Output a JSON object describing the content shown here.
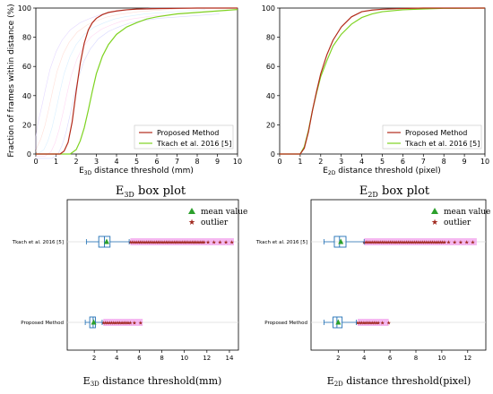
{
  "chart_data": [
    {
      "type": "line",
      "id": "cdf3d",
      "ylabel": "Fraction of frames within distance (%)",
      "xlabel_main": "E",
      "xlabel_sub": "3D",
      "xlabel_rest": " distance threshold (mm)",
      "xlim": [
        0,
        10
      ],
      "ylim": [
        0,
        100
      ],
      "xticks": [
        "0",
        "1",
        "2",
        "3",
        "4",
        "5",
        "6",
        "7",
        "8",
        "9",
        "10"
      ],
      "yticks": [
        "0",
        "20",
        "40",
        "60",
        "80",
        "100"
      ],
      "legend_position": "lower-right",
      "series": [
        {
          "name": "Proposed Method",
          "color": "#b22a1a",
          "x": [
            0,
            1.2,
            1.4,
            1.6,
            1.8,
            2.0,
            2.2,
            2.4,
            2.6,
            2.8,
            3.0,
            3.3,
            3.6,
            4.0,
            4.5,
            5.0,
            6.0,
            7.0,
            8.0,
            10.0
          ],
          "y": [
            0,
            0,
            2,
            8,
            22,
            43,
            62,
            76,
            85,
            90,
            93,
            95.5,
            97,
            98,
            98.8,
            99.3,
            99.6,
            99.8,
            100,
            100
          ]
        },
        {
          "name": "Tkach et al. 2016 [5]",
          "color": "#7ed321",
          "x": [
            0,
            1.7,
            2.0,
            2.2,
            2.4,
            2.6,
            2.8,
            3.0,
            3.3,
            3.6,
            4.0,
            4.5,
            5.0,
            5.5,
            6.0,
            7.0,
            8.0,
            9.0,
            10.0
          ],
          "y": [
            0,
            0,
            3,
            9,
            18,
            30,
            43,
            55,
            67,
            75,
            82,
            87,
            90,
            92.5,
            94,
            96,
            97,
            98,
            99
          ]
        }
      ]
    },
    {
      "type": "line",
      "id": "cdf2d",
      "xlabel_main": "E",
      "xlabel_sub": "2D",
      "xlabel_rest": " distance threshold (pixel)",
      "xlim": [
        0,
        10
      ],
      "ylim": [
        0,
        100
      ],
      "xticks": [
        "0",
        "1",
        "2",
        "3",
        "4",
        "5",
        "6",
        "7",
        "8",
        "9",
        "10"
      ],
      "yticks": [
        "0",
        "20",
        "40",
        "60",
        "80",
        "100"
      ],
      "legend_position": "lower-right",
      "series": [
        {
          "name": "Proposed Method",
          "color": "#b22a1a",
          "x": [
            0,
            1.0,
            1.2,
            1.4,
            1.6,
            1.8,
            2.0,
            2.3,
            2.6,
            3.0,
            3.5,
            4.0,
            4.5,
            5.0,
            6.0,
            7.0,
            8.0,
            10.0
          ],
          "y": [
            0,
            0,
            4,
            15,
            30,
            43,
            55,
            68,
            78,
            87,
            94,
            97.5,
            98.6,
            99.2,
            99.7,
            100,
            100,
            100
          ]
        },
        {
          "name": "Tkach et al. 2016 [5]",
          "color": "#7ed321",
          "x": [
            0,
            1.0,
            1.2,
            1.4,
            1.6,
            1.8,
            2.0,
            2.3,
            2.6,
            3.0,
            3.5,
            4.0,
            4.5,
            5.0,
            6.0,
            7.0,
            8.0,
            10.0
          ],
          "y": [
            0,
            0,
            5,
            16,
            30,
            42,
            53,
            64,
            74,
            82,
            89,
            93.5,
            96,
            97.5,
            98.8,
            99.4,
            99.8,
            100
          ]
        }
      ]
    },
    {
      "type": "box",
      "id": "box3d",
      "title_main": "E",
      "title_sub": "3D",
      "title_rest": " box plot",
      "xlabel_main": "E",
      "xlabel_sub": "3D",
      "xlabel_rest": " distance threshold(mm)",
      "xlim": [
        -0.4,
        14.8
      ],
      "xticks": [
        "2",
        "4",
        "6",
        "8",
        "10",
        "12",
        "14"
      ],
      "categories": [
        "Tkach et al. 2016 [5]",
        "Proposed Method"
      ],
      "legend": {
        "mean": "mean value",
        "outlier": "outlier"
      },
      "boxes": [
        {
          "name": "Tkach et al. 2016 [5]",
          "whisker_low": 1.3,
          "q1": 2.4,
          "median": 2.9,
          "q3": 3.4,
          "whisker_high": 5.1,
          "mean": 3.1,
          "outlier_range": [
            5.2,
            14.4
          ]
        },
        {
          "name": "Proposed Method",
          "whisker_low": 1.2,
          "q1": 1.6,
          "median": 1.9,
          "q3": 2.1,
          "whisker_high": 2.7,
          "mean": 1.95,
          "outlier_range": [
            2.8,
            6.3
          ]
        }
      ]
    },
    {
      "type": "box",
      "id": "box2d",
      "title_main": "E",
      "title_sub": "2D",
      "title_rest": " box plot",
      "xlabel_main": "E",
      "xlabel_sub": "2D",
      "xlabel_rest": " distance threshold(pixel)",
      "xlim": [
        -0.1,
        13.4
      ],
      "xticks": [
        "2",
        "4",
        "6",
        "8",
        "10",
        "12"
      ],
      "categories": [
        "Tkach et al. 2016 [5]",
        "Proposed Method"
      ],
      "legend": {
        "mean": "mean value",
        "outlier": "outlier"
      },
      "boxes": [
        {
          "name": "Tkach et al. 2016 [5]",
          "whisker_low": 0.9,
          "q1": 1.7,
          "median": 2.1,
          "q3": 2.6,
          "whisker_high": 4.0,
          "mean": 2.2,
          "outlier_range": [
            4.0,
            12.7
          ]
        },
        {
          "name": "Proposed Method",
          "whisker_low": 0.9,
          "q1": 1.6,
          "median": 1.9,
          "q3": 2.3,
          "whisker_high": 3.4,
          "mean": 2.0,
          "outlier_range": [
            3.5,
            5.9
          ]
        }
      ]
    }
  ],
  "colors": {
    "box": "#1f6fb5",
    "mean_marker": "#2ca02c",
    "outlier": "#a0281e",
    "outlier_band": "#f2a6ee"
  }
}
